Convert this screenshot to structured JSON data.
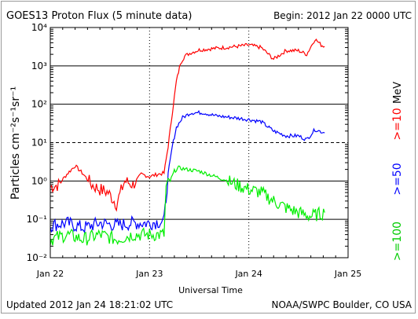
{
  "header": {
    "title": "GOES13 Proton Flux (5 minute data)",
    "begin": "Begin: 2012 Jan 22 0000 UTC"
  },
  "footer": {
    "updated": "Updated 2012 Jan 24 18:21:02 UTC",
    "credit": "NOAA/SWPC Boulder, CO USA"
  },
  "colors": {
    "ge10": "#ff0000",
    "ge50": "#0000ff",
    "ge100": "#00ee00",
    "grid": "#000000",
    "unit_label": "#000000"
  },
  "chart_data": {
    "type": "line",
    "title": "GOES13 Proton Flux (5 minute data)",
    "xlabel": "Universal Time",
    "ylabel": "Particles cm⁻²s⁻¹sr⁻¹",
    "unit_label": "MeV",
    "yscale": "log",
    "ylim": [
      0.01,
      10000
    ],
    "xlim": [
      "2012-01-22 00:00",
      "2012-01-25 00:00"
    ],
    "y_ticks": [
      {
        "value": 10000,
        "label": "10⁴"
      },
      {
        "value": 1000,
        "label": "10³"
      },
      {
        "value": 100,
        "label": "10²"
      },
      {
        "value": 10,
        "label": "10¹"
      },
      {
        "value": 1,
        "label": "10⁰"
      },
      {
        "value": 0.1,
        "label": "10⁻¹"
      },
      {
        "value": 0.01,
        "label": "10⁻²"
      }
    ],
    "x_ticks": [
      "Jan 22",
      "Jan 23",
      "Jan 24",
      "Jan 25"
    ],
    "threshold": 10,
    "series": [
      {
        "name": ">=10",
        "x": [
          "2012-01-22 00:00",
          "2012-01-22 02:00",
          "2012-01-22 04:00",
          "2012-01-22 06:00",
          "2012-01-22 08:00",
          "2012-01-22 10:00",
          "2012-01-22 12:00",
          "2012-01-22 14:00",
          "2012-01-22 16:00",
          "2012-01-22 18:00",
          "2012-01-22 20:00",
          "2012-01-22 22:00",
          "2012-01-23 00:00",
          "2012-01-23 02:00",
          "2012-01-23 03:30",
          "2012-01-23 04:30",
          "2012-01-23 05:30",
          "2012-01-23 06:30",
          "2012-01-23 07:30",
          "2012-01-23 08:30",
          "2012-01-23 10:00",
          "2012-01-23 12:00",
          "2012-01-23 15:00",
          "2012-01-23 18:00",
          "2012-01-23 21:00",
          "2012-01-24 00:00",
          "2012-01-24 03:00",
          "2012-01-24 06:00",
          "2012-01-24 09:00",
          "2012-01-24 12:00",
          "2012-01-24 14:00",
          "2012-01-24 16:00",
          "2012-01-24 17:30",
          "2012-01-24 18:20"
        ],
        "values": [
          0.7,
          0.8,
          1.5,
          2.5,
          1.5,
          0.8,
          0.6,
          0.5,
          0.25,
          1.0,
          0.8,
          1.5,
          1.3,
          1.5,
          1.6,
          8,
          60,
          400,
          1200,
          1800,
          2200,
          2600,
          2800,
          3000,
          3200,
          3500,
          3000,
          1500,
          2500,
          2500,
          2000,
          5000,
          3500,
          3200
        ]
      },
      {
        "name": ">=50",
        "x": [
          "2012-01-22 00:00",
          "2012-01-22 04:00",
          "2012-01-22 08:00",
          "2012-01-22 12:00",
          "2012-01-22 16:00",
          "2012-01-22 20:00",
          "2012-01-23 00:00",
          "2012-01-23 03:30",
          "2012-01-23 04:30",
          "2012-01-23 05:30",
          "2012-01-23 06:30",
          "2012-01-23 08:00",
          "2012-01-23 10:00",
          "2012-01-23 13:00",
          "2012-01-23 16:00",
          "2012-01-23 20:00",
          "2012-01-24 00:00",
          "2012-01-24 03:00",
          "2012-01-24 06:00",
          "2012-01-24 09:00",
          "2012-01-24 12:00",
          "2012-01-24 14:00",
          "2012-01-24 16:00",
          "2012-01-24 18:20"
        ],
        "values": [
          0.07,
          0.08,
          0.06,
          0.08,
          0.07,
          0.08,
          0.08,
          0.09,
          1.5,
          8,
          25,
          45,
          60,
          60,
          50,
          45,
          40,
          35,
          20,
          15,
          15,
          12,
          22,
          18
        ]
      },
      {
        "name": ">=100",
        "x": [
          "2012-01-22 00:00",
          "2012-01-22 04:00",
          "2012-01-22 08:00",
          "2012-01-22 12:00",
          "2012-01-22 16:00",
          "2012-01-22 20:00",
          "2012-01-23 00:00",
          "2012-01-23 03:30",
          "2012-01-23 04:00",
          "2012-01-23 05:00",
          "2012-01-23 06:00",
          "2012-01-23 07:00",
          "2012-01-23 09:00",
          "2012-01-23 12:00",
          "2012-01-23 15:00",
          "2012-01-23 18:00",
          "2012-01-23 21:00",
          "2012-01-24 00:00",
          "2012-01-24 03:00",
          "2012-01-24 06:00",
          "2012-01-24 09:00",
          "2012-01-24 12:00",
          "2012-01-24 15:00",
          "2012-01-24 18:20"
        ],
        "values": [
          0.03,
          0.04,
          0.03,
          0.04,
          0.03,
          0.04,
          0.04,
          0.04,
          0.7,
          1.0,
          1.8,
          2.2,
          2.0,
          1.8,
          1.4,
          1.1,
          0.8,
          0.6,
          0.5,
          0.3,
          0.2,
          0.15,
          0.12,
          0.15
        ]
      }
    ]
  }
}
